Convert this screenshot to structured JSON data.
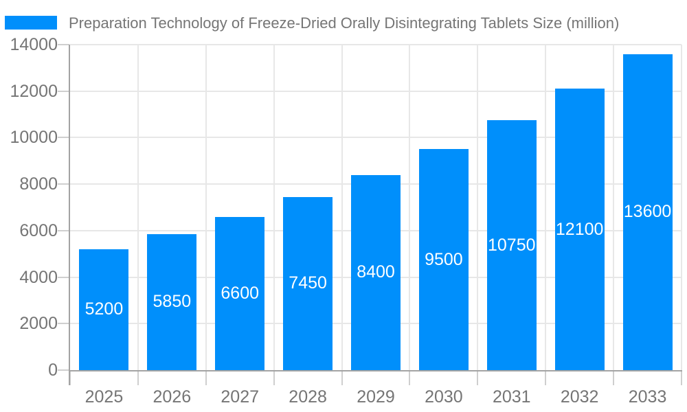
{
  "chart_data": {
    "type": "bar",
    "title": "Preparation Technology of Freeze-Dried Orally Disintegrating Tablets Size (million)",
    "legend": {
      "label": "Preparation Technology of Freeze-Dried Orally Disintegrating Tablets Size (million)",
      "position": "top-left"
    },
    "categories": [
      "2025",
      "2026",
      "2027",
      "2028",
      "2029",
      "2030",
      "2031",
      "2032",
      "2033"
    ],
    "values": [
      5200,
      5850,
      6600,
      7450,
      8400,
      9500,
      10750,
      12100,
      13600
    ],
    "value_labels": [
      "5200",
      "5850",
      "6600",
      "7450",
      "8400",
      "9500",
      "10750",
      "12100",
      "13600"
    ],
    "xlabel": "",
    "ylabel": "",
    "ylim": [
      0,
      14000
    ],
    "ytick_step": 2000,
    "ytick_labels": [
      "0",
      "2000",
      "4000",
      "6000",
      "8000",
      "10000",
      "12000",
      "14000"
    ],
    "grid": true,
    "colors": {
      "bar": "#008FFB",
      "text": "#757575",
      "grid": "#e7e7e7",
      "tick": "#cfcfcf",
      "axis": "#a3a3a3",
      "value_label": "#ffffff"
    }
  }
}
